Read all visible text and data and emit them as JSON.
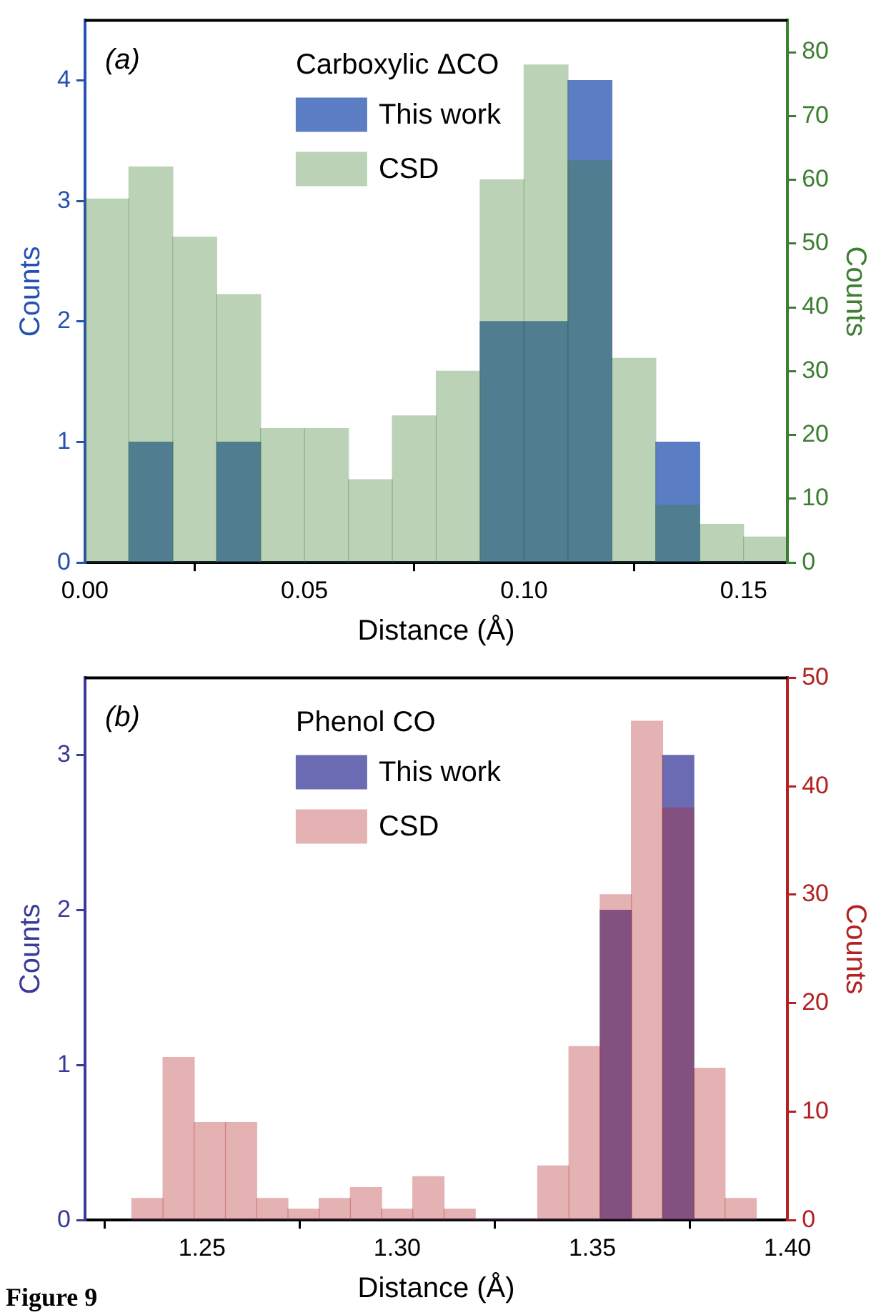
{
  "chart_data": [
    {
      "type": "histogram",
      "legend_title": "Carboxylic ΔCO",
      "annotations": [
        "(a)"
      ],
      "xlabel": "Distance (Å)",
      "ylabel": "Counts",
      "y2label": "Counts",
      "bins": [
        0,
        0.01,
        0.02,
        0.03,
        0.04,
        0.05,
        0.06,
        0.07,
        0.08,
        0.09,
        0.1,
        0.11,
        0.12,
        0.13,
        0.14,
        0.15,
        0.16
      ],
      "series": [
        {
          "name": "This work",
          "color": "#2452b0",
          "values": [
            0,
            1,
            0,
            1,
            0,
            0,
            0,
            0,
            0,
            2,
            2,
            4,
            0,
            1,
            0,
            0
          ]
        },
        {
          "name": "CSD",
          "color": "#3d7f32",
          "axis": "y2",
          "values": [
            57,
            62,
            51,
            42,
            21,
            21,
            13,
            23,
            30,
            60,
            78,
            63,
            32,
            9,
            6,
            4
          ]
        }
      ],
      "xlim": [
        0,
        0.16
      ],
      "xticks": [
        {
          "value": 0,
          "label": "0.00"
        },
        {
          "value": 0.05,
          "label": "0.05"
        },
        {
          "value": 0.1,
          "label": "0.10"
        },
        {
          "value": 0.15,
          "label": "0.15"
        }
      ],
      "ylim": [
        0,
        4.5
      ],
      "yticks": [
        0,
        1,
        2,
        3,
        4
      ],
      "y2lim": [
        0,
        85
      ],
      "y2ticks": [
        0,
        10,
        20,
        30,
        40,
        50,
        60,
        70,
        80
      ],
      "grid": false,
      "legend": "top"
    },
    {
      "type": "histogram",
      "legend_title": "Phenol CO",
      "annotations": [
        "(b)",
        "Figure 9"
      ],
      "xlabel": "Distance (Å)",
      "ylabel": "Counts",
      "y2label": "Counts",
      "bins": [
        1.232,
        1.24,
        1.248,
        1.256,
        1.264,
        1.272,
        1.28,
        1.288,
        1.296,
        1.304,
        1.312,
        1.32,
        1.328,
        1.336,
        1.344,
        1.352,
        1.36,
        1.368,
        1.376,
        1.384,
        1.392
      ],
      "series": [
        {
          "name": "This work",
          "color": "#3a3a9a",
          "values": [
            0,
            0,
            0,
            0,
            0,
            0,
            0,
            0,
            0,
            0,
            0,
            0,
            0,
            0,
            0,
            2,
            0,
            3,
            0,
            0
          ]
        },
        {
          "name": "CSD",
          "color": "#b22222",
          "axis": "y2",
          "values": [
            2,
            15,
            9,
            9,
            2,
            1,
            2,
            3,
            1,
            4,
            1,
            0,
            0,
            5,
            16,
            30,
            46,
            38,
            14,
            2
          ]
        }
      ],
      "xlim": [
        1.22,
        1.4
      ],
      "xticks": [
        {
          "value": 1.25,
          "label": "1.25"
        },
        {
          "value": 1.3,
          "label": "1.30"
        },
        {
          "value": 1.35,
          "label": "1.35"
        },
        {
          "value": 1.4,
          "label": "1.40"
        }
      ],
      "ylim": [
        0,
        3.5
      ],
      "yticks": [
        0,
        1,
        2,
        3
      ],
      "y2lim": [
        0,
        50
      ],
      "y2ticks": [
        0,
        10,
        20,
        30,
        40,
        50
      ],
      "grid": false,
      "legend": "top"
    }
  ]
}
